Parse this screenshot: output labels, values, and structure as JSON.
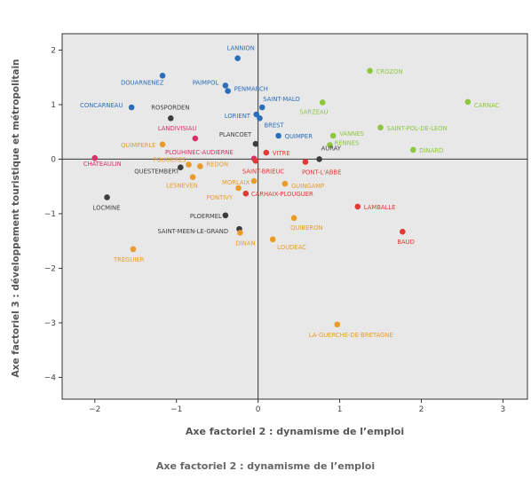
{
  "chart_data": {
    "type": "scatter",
    "xlabel": "Axe factoriel 2 : dynamisme de l’emploi",
    "ylabel": "Axe factoriel 3 : développement touristique et métropolitain",
    "xlim": [
      -2.4,
      3.3
    ],
    "ylim": [
      -4.4,
      2.3
    ],
    "x_ticks": [
      -2,
      -1,
      0,
      1,
      2,
      3
    ],
    "y_ticks": [
      -4,
      -3,
      -2,
      -1,
      0,
      1,
      2
    ],
    "grid": false,
    "reference_lines": [
      0,
      0
    ],
    "plot_background": "#e8e8e8",
    "points": [
      {
        "label": "LANNION",
        "x": -0.25,
        "y": 1.85,
        "color": "#2a6ebb"
      },
      {
        "label": "DOUARNENEZ",
        "x": -1.17,
        "y": 1.53,
        "color": "#2a6ebb"
      },
      {
        "label": "PAIMPOL",
        "x": -0.4,
        "y": 1.35,
        "color": "#2a6ebb"
      },
      {
        "label": "PENMARCH",
        "x": -0.37,
        "y": 1.25,
        "color": "#2a6ebb"
      },
      {
        "label": "SAINT-MALO",
        "x": 0.05,
        "y": 0.95,
        "color": "#2a6ebb"
      },
      {
        "label": "CONCARNEAU",
        "x": -1.55,
        "y": 0.95,
        "color": "#2a6ebb"
      },
      {
        "label": "LORIENT",
        "x": -0.02,
        "y": 0.82,
        "color": "#2a6ebb"
      },
      {
        "label": "BREST",
        "x": 0.02,
        "y": 0.75,
        "color": "#2a6ebb"
      },
      {
        "label": "QUIMPER",
        "x": 0.25,
        "y": 0.43,
        "color": "#2a6ebb"
      },
      {
        "label": "ROSPORDEN",
        "x": -1.07,
        "y": 0.75,
        "color": "#3d3d3d"
      },
      {
        "label": "PLANCOET",
        "x": -0.03,
        "y": 0.28,
        "color": "#3d3d3d"
      },
      {
        "label": "AURAY",
        "x": 0.75,
        "y": 0.0,
        "color": "#3d3d3d"
      },
      {
        "label": "QUESTEMBERT",
        "x": -0.95,
        "y": -0.15,
        "color": "#3d3d3d"
      },
      {
        "label": "LOCMINE",
        "x": -1.85,
        "y": -0.7,
        "color": "#3d3d3d"
      },
      {
        "label": "PLOERMEL",
        "x": -0.4,
        "y": -1.03,
        "color": "#3d3d3d"
      },
      {
        "label": "SAINT-MEEN-LE-GRAND",
        "x": -0.23,
        "y": -1.28,
        "color": "#3d3d3d"
      },
      {
        "label": "LANDIVISIAU",
        "x": -0.77,
        "y": 0.38,
        "color": "#d6306a"
      },
      {
        "label": "CHATEAULIN",
        "x": -2.0,
        "y": 0.02,
        "color": "#d6306a"
      },
      {
        "label": "PLOUHINEC-AUDIERNE",
        "x": -0.05,
        "y": 0.01,
        "color": "#d6306a"
      },
      {
        "label": "VITRE",
        "x": 0.1,
        "y": 0.12,
        "color": "#e03a32"
      },
      {
        "label": "SAINT-BRIEUC",
        "x": -0.03,
        "y": -0.03,
        "color": "#e03a32"
      },
      {
        "label": "PONT-L'ABBE",
        "x": 0.58,
        "y": -0.05,
        "color": "#e03a32"
      },
      {
        "label": "CARHAIX-PLOUGUER",
        "x": -0.15,
        "y": -0.63,
        "color": "#e03a32"
      },
      {
        "label": "LAMBALLE",
        "x": 1.22,
        "y": -0.87,
        "color": "#e03a32"
      },
      {
        "label": "BAUD",
        "x": 1.77,
        "y": -1.33,
        "color": "#e03a32"
      },
      {
        "label": "QUIMPERLE",
        "x": -1.17,
        "y": 0.27,
        "color": "#e89c27"
      },
      {
        "label": "FOUGERES",
        "x": -0.85,
        "y": -0.1,
        "color": "#e89c27"
      },
      {
        "label": "REDON",
        "x": -0.71,
        "y": -0.13,
        "color": "#e89c27"
      },
      {
        "label": "LESNEVEN",
        "x": -0.8,
        "y": -0.33,
        "color": "#e89c27"
      },
      {
        "label": "MORLAIX",
        "x": -0.05,
        "y": -0.4,
        "color": "#e89c27"
      },
      {
        "label": "GUINGAMP",
        "x": 0.33,
        "y": -0.45,
        "color": "#e89c27"
      },
      {
        "label": "PONTIVY",
        "x": -0.24,
        "y": -0.53,
        "color": "#e89c27"
      },
      {
        "label": "QUIBERON",
        "x": 0.44,
        "y": -1.08,
        "color": "#e89c27"
      },
      {
        "label": "DINAN",
        "x": -0.22,
        "y": -1.35,
        "color": "#e89c27"
      },
      {
        "label": "LOUDEAC",
        "x": 0.18,
        "y": -1.47,
        "color": "#e89c27"
      },
      {
        "label": "TREGUIER",
        "x": -1.53,
        "y": -1.65,
        "color": "#e89c27"
      },
      {
        "label": "LA-GUERCHE-DE-BRETAGNE",
        "x": 0.97,
        "y": -3.03,
        "color": "#e89c27"
      },
      {
        "label": "CROZON",
        "x": 1.37,
        "y": 1.62,
        "color": "#8dc63f"
      },
      {
        "label": "CARNAC",
        "x": 2.57,
        "y": 1.05,
        "color": "#8dc63f"
      },
      {
        "label": "SARZEAU",
        "x": 0.79,
        "y": 1.04,
        "color": "#8dc63f"
      },
      {
        "label": "SAINT-POL-DE-LEON",
        "x": 1.5,
        "y": 0.58,
        "color": "#8dc63f"
      },
      {
        "label": "VANNES",
        "x": 0.92,
        "y": 0.43,
        "color": "#8dc63f"
      },
      {
        "label": "RENNES",
        "x": 0.88,
        "y": 0.26,
        "color": "#8dc63f"
      },
      {
        "label": "DINARD",
        "x": 1.9,
        "y": 0.17,
        "color": "#8dc63f"
      }
    ]
  },
  "caption": "Axe factoriel 2 : dynamisme de l’emploi"
}
